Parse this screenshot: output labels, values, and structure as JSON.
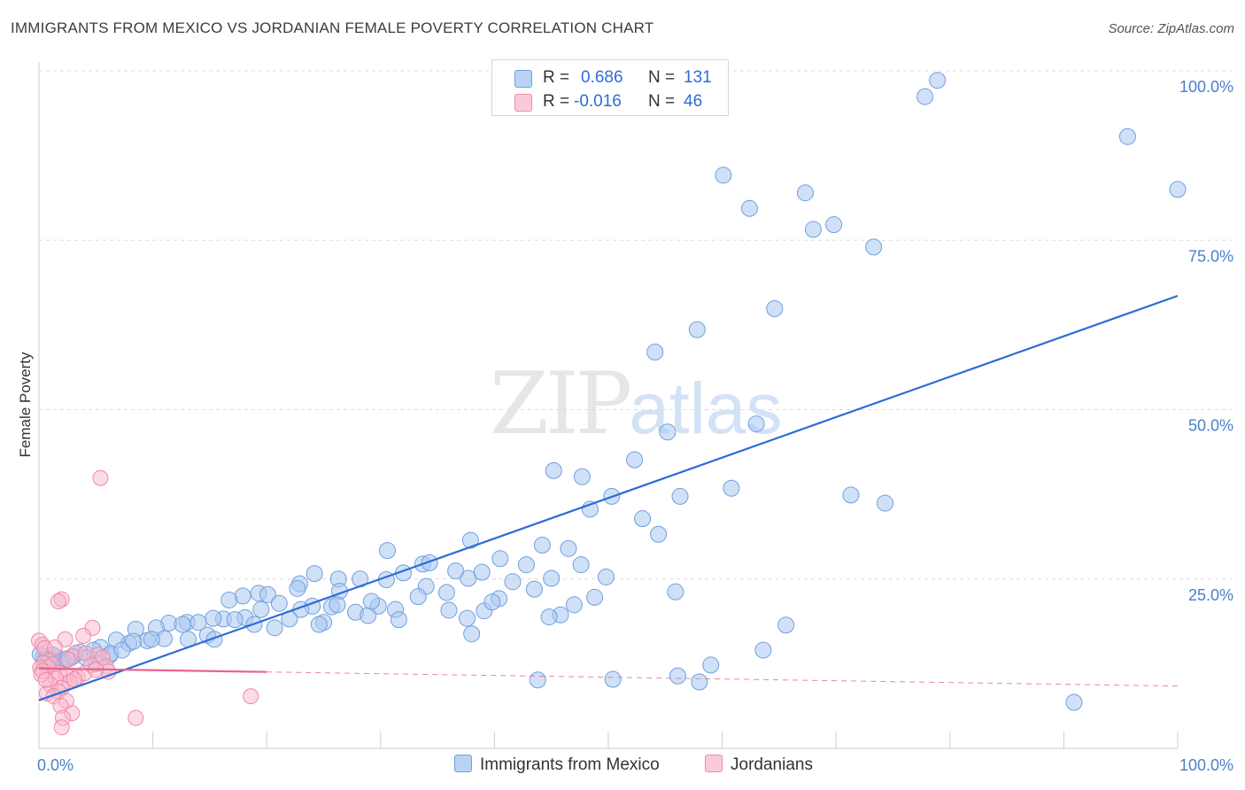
{
  "title": "IMMIGRANTS FROM MEXICO VS JORDANIAN FEMALE POVERTY CORRELATION CHART",
  "source": "Source: ZipAtlas.com",
  "watermark": {
    "zip": "ZIP",
    "atlas": "atlas"
  },
  "legend": {
    "rows": [
      {
        "r_label": "R =",
        "r_value": "0.686",
        "n_label": "N =",
        "n_value": "131"
      },
      {
        "r_label": "R =",
        "r_value": "-0.016",
        "n_label": "N =",
        "n_value": "46"
      }
    ]
  },
  "bottom_legend": {
    "series_1": "Immigrants from Mexico",
    "series_2": "Jordanians"
  },
  "colors": {
    "blue_fill": "#a9c8f0",
    "blue_stroke": "#6f9fe0",
    "blue_line": "#2d6cd6",
    "pink_fill": "#f7b8cb",
    "pink_stroke": "#ee8aa8",
    "pink_line": "#e8638f",
    "grid": "#dcdcdc",
    "tick": "#4a7fcb"
  },
  "chart_data": {
    "type": "scatter",
    "title": "IMMIGRANTS FROM MEXICO VS JORDANIAN FEMALE POVERTY CORRELATION CHART",
    "xlabel": "",
    "ylabel": "Female Poverty",
    "xlim": [
      0,
      100
    ],
    "ylim": [
      0,
      102
    ],
    "x_tick_labels": [
      "0.0%",
      "100.0%"
    ],
    "y_ticks": [
      {
        "value": 25,
        "label": "25.0%"
      },
      {
        "value": 50,
        "label": "50.0%"
      },
      {
        "value": 75,
        "label": "75.0%"
      },
      {
        "value": 100,
        "label": "100.0%"
      }
    ],
    "series": [
      {
        "name": "Immigrants from Mexico",
        "R": 0.686,
        "N": 131,
        "trend": {
          "x": [
            0,
            100
          ],
          "y": [
            7.1,
            66.8
          ],
          "dashed_from": null
        },
        "points": [
          [
            78.9,
            98.6
          ],
          [
            77.8,
            96.2
          ],
          [
            95.6,
            90.3
          ],
          [
            100,
            82.5
          ],
          [
            60.1,
            84.6
          ],
          [
            62.4,
            79.7
          ],
          [
            67.3,
            82.0
          ],
          [
            69.8,
            77.3
          ],
          [
            68.0,
            76.6
          ],
          [
            73.3,
            74.0
          ],
          [
            64.6,
            64.9
          ],
          [
            54.1,
            58.5
          ],
          [
            57.8,
            61.8
          ],
          [
            63.0,
            47.9
          ],
          [
            55.2,
            46.7
          ],
          [
            52.3,
            42.6
          ],
          [
            45.2,
            41.0
          ],
          [
            47.7,
            40.1
          ],
          [
            56.3,
            37.2
          ],
          [
            50.3,
            37.2
          ],
          [
            48.4,
            35.3
          ],
          [
            60.8,
            38.4
          ],
          [
            71.3,
            37.4
          ],
          [
            74.3,
            36.2
          ],
          [
            53.0,
            33.9
          ],
          [
            54.4,
            31.6
          ],
          [
            44.2,
            30.0
          ],
          [
            37.9,
            30.7
          ],
          [
            46.5,
            29.5
          ],
          [
            40.5,
            28.0
          ],
          [
            33.7,
            27.2
          ],
          [
            24.2,
            25.8
          ],
          [
            26.3,
            25.0
          ],
          [
            30.6,
            29.2
          ],
          [
            34.3,
            27.4
          ],
          [
            28.2,
            25.0
          ],
          [
            22.9,
            24.3
          ],
          [
            22.7,
            23.6
          ],
          [
            19.3,
            22.9
          ],
          [
            20.1,
            22.7
          ],
          [
            17.9,
            22.5
          ],
          [
            16.7,
            21.9
          ],
          [
            21.1,
            21.4
          ],
          [
            24.0,
            21.0
          ],
          [
            25.7,
            20.9
          ],
          [
            29.8,
            21.0
          ],
          [
            23.0,
            20.5
          ],
          [
            31.3,
            20.5
          ],
          [
            36.0,
            20.4
          ],
          [
            39.1,
            20.3
          ],
          [
            45.8,
            19.7
          ],
          [
            37.6,
            19.2
          ],
          [
            31.6,
            19.0
          ],
          [
            18.1,
            19.3
          ],
          [
            16.2,
            19.1
          ],
          [
            15.3,
            19.2
          ],
          [
            13.0,
            18.6
          ],
          [
            11.4,
            18.5
          ],
          [
            14.0,
            18.6
          ],
          [
            12.6,
            18.3
          ],
          [
            10.3,
            17.8
          ],
          [
            8.5,
            17.6
          ],
          [
            14.8,
            16.7
          ],
          [
            13.1,
            16.1
          ],
          [
            11.0,
            16.2
          ],
          [
            9.5,
            15.9
          ],
          [
            9.9,
            16.1
          ],
          [
            7.9,
            15.5
          ],
          [
            6.8,
            16.0
          ],
          [
            5.4,
            14.9
          ],
          [
            4.8,
            14.5
          ],
          [
            3.6,
            14.2
          ],
          [
            6.2,
            13.7
          ],
          [
            5.0,
            12.5
          ],
          [
            2.9,
            13.5
          ],
          [
            1.8,
            13.0
          ],
          [
            1.0,
            13.2
          ],
          [
            0.4,
            13.5
          ],
          [
            0.1,
            13.9
          ],
          [
            2.0,
            12.7
          ],
          [
            3.0,
            13.6
          ],
          [
            38.0,
            16.9
          ],
          [
            59.0,
            12.3
          ],
          [
            63.6,
            14.5
          ],
          [
            65.6,
            18.2
          ],
          [
            58.0,
            9.8
          ],
          [
            56.1,
            10.7
          ],
          [
            50.4,
            10.2
          ],
          [
            43.8,
            10.1
          ],
          [
            47.0,
            21.2
          ],
          [
            48.8,
            22.3
          ],
          [
            49.8,
            25.3
          ],
          [
            37.7,
            25.1
          ],
          [
            40.4,
            22.1
          ],
          [
            41.6,
            24.6
          ],
          [
            43.5,
            23.5
          ],
          [
            47.6,
            27.1
          ],
          [
            26.4,
            23.2
          ],
          [
            27.8,
            20.1
          ],
          [
            35.8,
            23.0
          ],
          [
            19.5,
            20.5
          ],
          [
            25.0,
            18.6
          ],
          [
            26.2,
            21.2
          ],
          [
            32.0,
            25.9
          ],
          [
            34.0,
            23.9
          ],
          [
            38.9,
            26.0
          ],
          [
            36.6,
            26.2
          ],
          [
            30.5,
            24.9
          ],
          [
            42.8,
            27.1
          ],
          [
            45.0,
            25.1
          ],
          [
            90.9,
            6.8
          ],
          [
            28.9,
            19.6
          ],
          [
            55.9,
            23.1
          ],
          [
            33.3,
            22.4
          ],
          [
            39.8,
            21.6
          ],
          [
            44.8,
            19.4
          ],
          [
            20.7,
            17.8
          ],
          [
            15.4,
            16.1
          ],
          [
            17.2,
            19.0
          ],
          [
            18.9,
            18.3
          ],
          [
            6.3,
            14.0
          ],
          [
            7.3,
            14.5
          ],
          [
            8.3,
            15.8
          ],
          [
            1.5,
            13.5
          ],
          [
            2.4,
            13.2
          ],
          [
            1.2,
            13.8
          ],
          [
            0.6,
            13.1
          ],
          [
            4.1,
            13.4
          ],
          [
            22.0,
            19.1
          ],
          [
            29.2,
            21.7
          ],
          [
            24.6,
            18.3
          ]
        ]
      },
      {
        "name": "Jordanians",
        "R": -0.016,
        "N": 46,
        "trend": {
          "x": [
            0,
            100
          ],
          "y": [
            11.8,
            9.2
          ],
          "dashed_from": 20
        },
        "points": [
          [
            5.4,
            39.9
          ],
          [
            2.0,
            22.0
          ],
          [
            1.7,
            21.7
          ],
          [
            4.7,
            17.8
          ],
          [
            3.9,
            16.6
          ],
          [
            2.3,
            16.1
          ],
          [
            0.0,
            15.9
          ],
          [
            0.3,
            15.3
          ],
          [
            0.5,
            14.8
          ],
          [
            1.4,
            14.9
          ],
          [
            3.2,
            14.1
          ],
          [
            4.1,
            14.0
          ],
          [
            5.2,
            13.8
          ],
          [
            5.6,
            13.4
          ],
          [
            2.6,
            13.1
          ],
          [
            0.9,
            13.0
          ],
          [
            0.4,
            12.6
          ],
          [
            1.2,
            12.4
          ],
          [
            0.8,
            12.0
          ],
          [
            0.1,
            11.9
          ],
          [
            0.3,
            11.4
          ],
          [
            1.8,
            11.1
          ],
          [
            2.4,
            10.8
          ],
          [
            3.4,
            10.5
          ],
          [
            4.0,
            11.1
          ],
          [
            5.9,
            12.1
          ],
          [
            4.6,
            12.3
          ],
          [
            6.1,
            11.3
          ],
          [
            1.5,
            10.3
          ],
          [
            2.7,
            9.8
          ],
          [
            3.1,
            10.2
          ],
          [
            1.0,
            9.4
          ],
          [
            2.0,
            8.9
          ],
          [
            1.7,
            8.4
          ],
          [
            0.7,
            8.1
          ],
          [
            1.3,
            7.7
          ],
          [
            2.4,
            7.0
          ],
          [
            1.9,
            6.3
          ],
          [
            2.9,
            5.2
          ],
          [
            2.1,
            4.5
          ],
          [
            2.0,
            3.1
          ],
          [
            8.5,
            4.5
          ],
          [
            18.6,
            7.7
          ],
          [
            0.2,
            10.9
          ],
          [
            0.6,
            10.1
          ],
          [
            5.0,
            11.6
          ]
        ]
      }
    ]
  }
}
